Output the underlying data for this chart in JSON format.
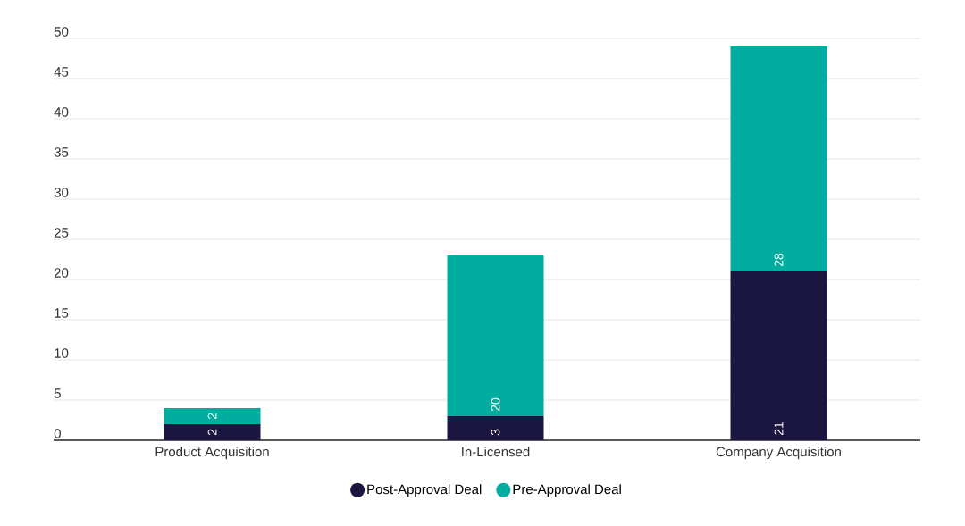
{
  "chart_data": {
    "type": "bar",
    "stacked": true,
    "categories": [
      "Product Acquisition",
      "In-Licensed",
      "Company Acquisition"
    ],
    "series": [
      {
        "name": "Post-Approval Deal",
        "color": "#1b1640",
        "values": [
          2,
          3,
          21
        ]
      },
      {
        "name": "Pre-Approval Deal",
        "color": "#00ad9f",
        "values": [
          2,
          20,
          28
        ]
      }
    ],
    "ylim": [
      0,
      50
    ],
    "yticks": [
      0,
      5,
      10,
      15,
      20,
      25,
      30,
      35,
      40,
      45,
      50
    ],
    "grid": "y",
    "legend": "bottom",
    "data_labels": true
  }
}
